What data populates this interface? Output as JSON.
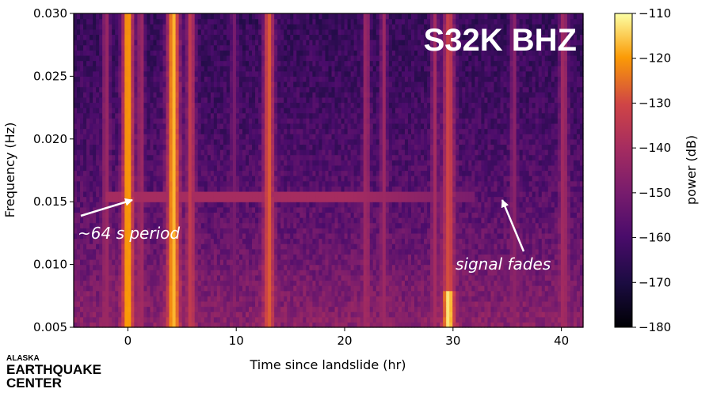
{
  "chart_data": {
    "type": "heatmap",
    "title": "S32K BHZ",
    "xlabel": "Time since landslide (hr)",
    "ylabel": "Frequency (Hz)",
    "xlim": [
      -5,
      42
    ],
    "ylim": [
      0.005,
      0.03
    ],
    "xticks": [
      0,
      10,
      20,
      30,
      40
    ],
    "xtick_labels": [
      "0",
      "10",
      "20",
      "30",
      "40"
    ],
    "yticks": [
      0.005,
      0.01,
      0.015,
      0.02,
      0.025,
      0.03
    ],
    "ytick_labels": [
      "0.005",
      "0.010",
      "0.015",
      "0.020",
      "0.025",
      "0.030"
    ],
    "colorbar": {
      "label": "power (dB)",
      "range": [
        -180,
        -110
      ],
      "ticks": [
        -110,
        -120,
        -130,
        -140,
        -150,
        -160,
        -170,
        -180
      ],
      "tick_labels": [
        "−110",
        "−120",
        "−130",
        "−140",
        "−150",
        "−160",
        "−170",
        "−180"
      ],
      "colormap": "inferno"
    },
    "background_level": -160,
    "vertical_bands": [
      {
        "time": -2.0,
        "width": 0.35,
        "power": -142
      },
      {
        "time": 0.0,
        "width": 0.55,
        "power": -118
      },
      {
        "time": 1.2,
        "width": 0.3,
        "power": -140
      },
      {
        "time": 4.2,
        "width": 0.6,
        "power": -117
      },
      {
        "time": 5.8,
        "width": 0.4,
        "power": -133
      },
      {
        "time": 9.8,
        "width": 0.3,
        "power": -150
      },
      {
        "time": 13.0,
        "width": 0.5,
        "power": -127
      },
      {
        "time": 22.0,
        "width": 0.3,
        "power": -140
      },
      {
        "time": 23.6,
        "width": 0.3,
        "power": -142
      },
      {
        "time": 28.3,
        "width": 0.3,
        "power": -140
      },
      {
        "time": 29.6,
        "width": 0.55,
        "power": -128
      },
      {
        "time": 35.6,
        "width": 0.3,
        "power": -145
      },
      {
        "time": 40.2,
        "width": 0.4,
        "power": -140
      }
    ],
    "horizontal_line": {
      "frequency": 0.0155,
      "time_range": [
        -2,
        32
      ],
      "power": -140
    },
    "annotations": [
      {
        "text": "~64 s period",
        "arrow_to": [
          0.5,
          0.0155
        ]
      },
      {
        "text": "signal fades",
        "arrow_to": [
          34.5,
          0.0155
        ]
      }
    ]
  },
  "logo": {
    "line1": "ALASKA",
    "line2": "EARTHQUAKE",
    "line3": "CENTER"
  }
}
